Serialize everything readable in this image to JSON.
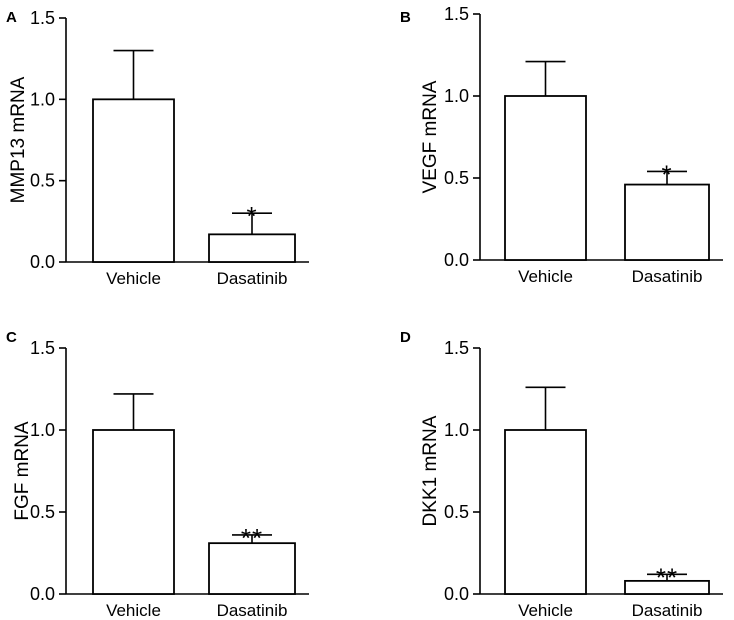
{
  "chart_data": [
    {
      "type": "bar",
      "panel": "A",
      "categories": [
        "Vehicle",
        "Dasatinib"
      ],
      "values": [
        1.0,
        0.17
      ],
      "error": [
        0.3,
        0.13
      ],
      "significance": [
        "",
        "*"
      ],
      "ylabel": "MMP13 mRNA",
      "ylim": [
        0,
        1.5
      ],
      "yticks": [
        "0.0",
        "0.5",
        "1.0",
        "1.5"
      ]
    },
    {
      "type": "bar",
      "panel": "B",
      "categories": [
        "Vehicle",
        "Dasatinib"
      ],
      "values": [
        1.0,
        0.46
      ],
      "error": [
        0.21,
        0.08
      ],
      "significance": [
        "",
        "*"
      ],
      "ylabel": "VEGF mRNA",
      "ylim": [
        0,
        1.5
      ],
      "yticks": [
        "0.0",
        "0.5",
        "1.0",
        "1.5"
      ]
    },
    {
      "type": "bar",
      "panel": "C",
      "categories": [
        "Vehicle",
        "Dasatinib"
      ],
      "values": [
        1.0,
        0.31
      ],
      "error": [
        0.22,
        0.05
      ],
      "significance": [
        "",
        "**"
      ],
      "ylabel": "FGF mRNA",
      "ylim": [
        0,
        1.5
      ],
      "yticks": [
        "0.0",
        "0.5",
        "1.0",
        "1.5"
      ]
    },
    {
      "type": "bar",
      "panel": "D",
      "categories": [
        "Vehicle",
        "Dasatinib"
      ],
      "values": [
        1.0,
        0.08
      ],
      "error": [
        0.26,
        0.04
      ],
      "significance": [
        "",
        "**"
      ],
      "ylabel": "DKK1 mRNA",
      "ylim": [
        0,
        1.5
      ],
      "yticks": [
        "0.0",
        "0.5",
        "1.0",
        "1.5"
      ]
    }
  ]
}
